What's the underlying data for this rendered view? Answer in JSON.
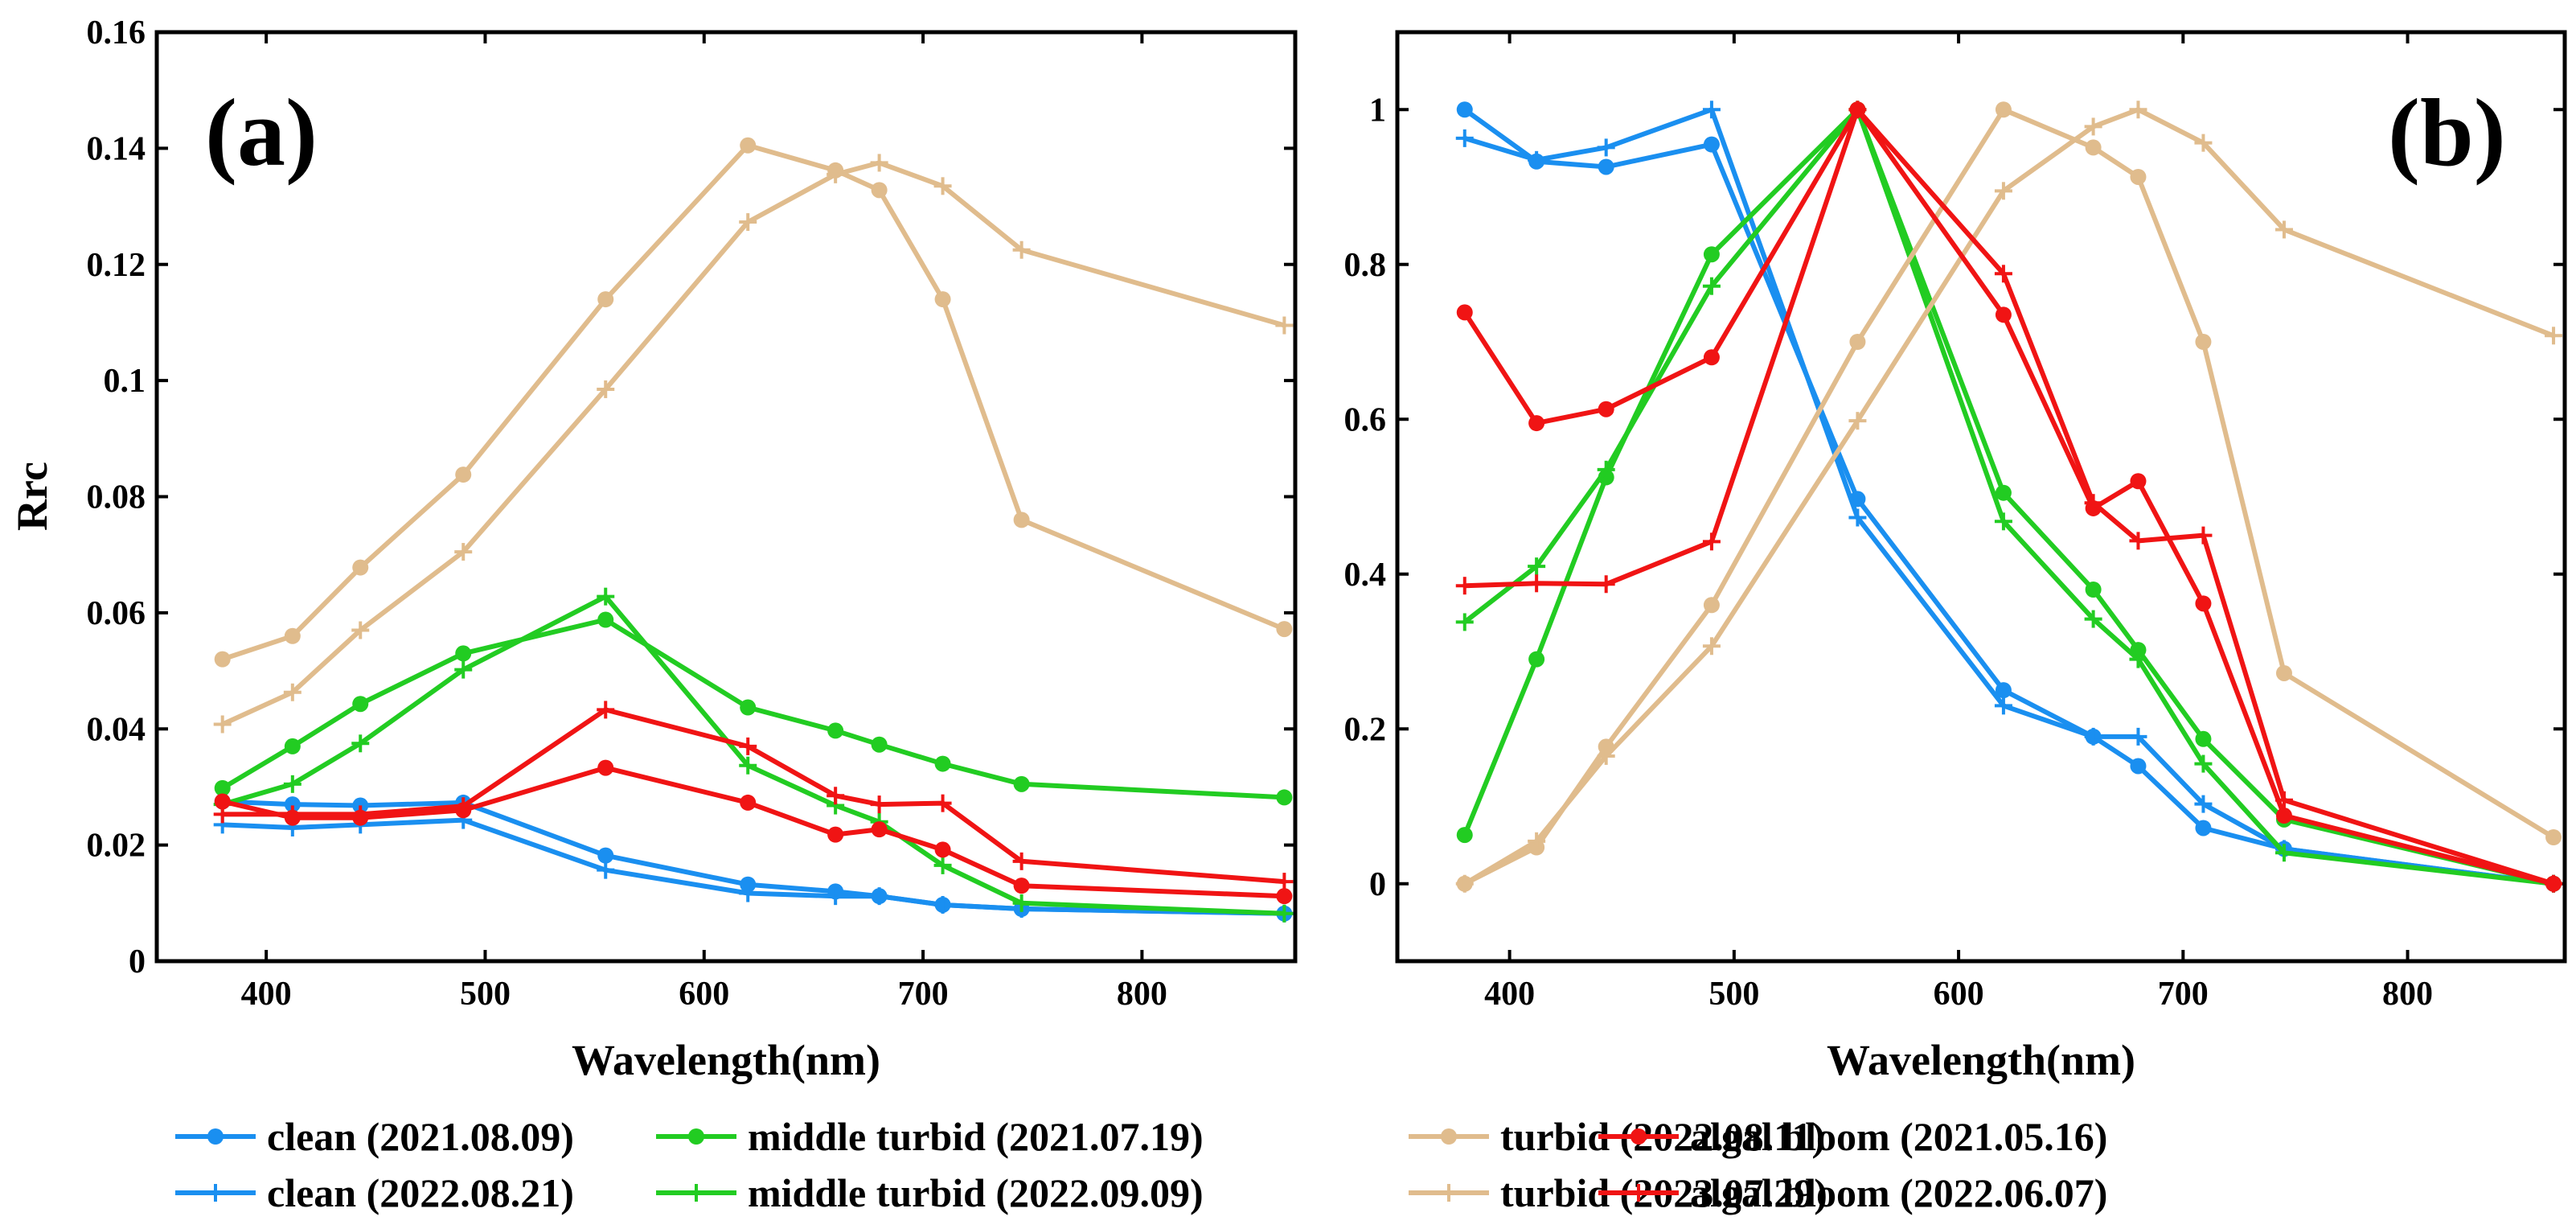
{
  "chart_data": [
    {
      "type": "line",
      "panel_label": "(a)",
      "title": "",
      "xlabel": "Wavelength(nm)",
      "ylabel": "Rrc",
      "xlim": [
        350,
        870
      ],
      "ylim": [
        0,
        0.16
      ],
      "x_ticks": [
        400,
        500,
        600,
        700,
        800
      ],
      "x_tick_labels": [
        "400",
        "500",
        "600",
        "700",
        "800"
      ],
      "y_ticks": [
        0,
        0.02,
        0.04,
        0.06,
        0.08,
        0.1,
        0.12,
        0.14,
        0.16
      ],
      "y_tick_labels": [
        "0",
        "0.02",
        "0.04",
        "0.06",
        "0.08",
        "0.1",
        "0.12",
        "0.14",
        "0.16"
      ],
      "grid": false,
      "x": [
        380,
        412,
        443,
        490,
        555,
        620,
        660,
        680,
        709,
        745,
        865
      ],
      "series": [
        {
          "name": "clean (2021.08.09)",
          "color": "#1a8ff0",
          "marker": "dot",
          "values": [
            0.0275,
            0.027,
            0.0268,
            0.0273,
            0.0182,
            0.0132,
            0.012,
            0.0112,
            0.0097,
            0.009,
            0.0082
          ]
        },
        {
          "name": "clean (2022.08.21)",
          "color": "#1a8ff0",
          "marker": "plus",
          "values": [
            0.0235,
            0.023,
            0.0235,
            0.0243,
            0.0157,
            0.0117,
            0.0112,
            0.0112,
            0.0097,
            0.009,
            0.0082
          ]
        },
        {
          "name": "middle turbid (2021.07.19)",
          "color": "#22cc22",
          "marker": "dot",
          "values": [
            0.0298,
            0.037,
            0.0443,
            0.053,
            0.0588,
            0.0437,
            0.0397,
            0.0373,
            0.034,
            0.0305,
            0.0282
          ]
        },
        {
          "name": "middle turbid (2022.09.09)",
          "color": "#22cc22",
          "marker": "plus",
          "values": [
            0.027,
            0.0305,
            0.0375,
            0.0502,
            0.0628,
            0.0337,
            0.0268,
            0.024,
            0.0165,
            0.01,
            0.0082
          ]
        },
        {
          "name": "turbid (2022.08.11)",
          "color": "#e0bc8d",
          "marker": "dot",
          "values": [
            0.052,
            0.056,
            0.0678,
            0.0838,
            0.114,
            0.1405,
            0.1362,
            0.1328,
            0.114,
            0.076,
            0.0572
          ]
        },
        {
          "name": "turbid (2023.07.29)",
          "color": "#e0bc8d",
          "marker": "plus",
          "values": [
            0.0408,
            0.0463,
            0.057,
            0.0705,
            0.0985,
            0.1273,
            0.1355,
            0.1375,
            0.1335,
            0.1225,
            0.1095
          ]
        },
        {
          "name": "algal bloom (2021.05.16)",
          "color": "#f01414",
          "marker": "dot",
          "values": [
            0.0275,
            0.0247,
            0.0247,
            0.026,
            0.0333,
            0.0273,
            0.0218,
            0.0227,
            0.0192,
            0.013,
            0.0112
          ]
        },
        {
          "name": "algal bloom (2022.06.07)",
          "color": "#f01414",
          "marker": "plus",
          "values": [
            0.0253,
            0.0253,
            0.0253,
            0.0267,
            0.0433,
            0.037,
            0.0285,
            0.027,
            0.0272,
            0.0172,
            0.0137
          ]
        }
      ]
    },
    {
      "type": "line",
      "panel_label": "(b)",
      "title": "",
      "xlabel": "Wavelength(nm)",
      "ylabel": "",
      "xlim": [
        350,
        870
      ],
      "ylim": [
        -0.1,
        1.1
      ],
      "x_ticks": [
        400,
        500,
        600,
        700,
        800
      ],
      "x_tick_labels": [
        "400",
        "500",
        "600",
        "700",
        "800"
      ],
      "y_ticks": [
        0,
        0.2,
        0.4,
        0.6,
        0.8,
        1
      ],
      "y_tick_labels": [
        "0",
        "0.2",
        "0.4",
        "0.6",
        "0.8",
        "1"
      ],
      "grid": false,
      "x": [
        380,
        412,
        443,
        490,
        555,
        620,
        660,
        680,
        709,
        745,
        865
      ],
      "series": [
        {
          "name": "clean (2021.08.09)",
          "color": "#1a8ff0",
          "marker": "dot",
          "values": [
            1.0,
            0.933,
            0.926,
            0.955,
            0.497,
            0.25,
            0.19,
            0.152,
            0.072,
            0.045,
            0.0
          ]
        },
        {
          "name": "clean (2022.08.21)",
          "color": "#1a8ff0",
          "marker": "plus",
          "values": [
            0.963,
            0.935,
            0.951,
            1.0,
            0.473,
            0.23,
            0.19,
            0.19,
            0.103,
            0.045,
            0.0
          ]
        },
        {
          "name": "middle turbid (2021.07.19)",
          "color": "#22cc22",
          "marker": "dot",
          "values": [
            0.063,
            0.29,
            0.525,
            0.813,
            1.0,
            0.505,
            0.38,
            0.302,
            0.187,
            0.083,
            0.0
          ]
        },
        {
          "name": "middle turbid (2022.09.09)",
          "color": "#22cc22",
          "marker": "plus",
          "values": [
            0.338,
            0.41,
            0.535,
            0.772,
            1.0,
            0.468,
            0.342,
            0.29,
            0.155,
            0.04,
            0.0
          ]
        },
        {
          "name": "turbid (2022.08.11)",
          "color": "#e0bc8d",
          "marker": "dot",
          "values": [
            0.0,
            0.047,
            0.177,
            0.36,
            0.7,
            1.0,
            0.951,
            0.913,
            0.7,
            0.272,
            0.06
          ]
        },
        {
          "name": "turbid (2023.07.29)",
          "color": "#e0bc8d",
          "marker": "plus",
          "values": [
            0.0,
            0.055,
            0.165,
            0.307,
            0.598,
            0.895,
            0.978,
            1.0,
            0.957,
            0.845,
            0.708
          ]
        },
        {
          "name": "algal bloom (2021.05.16)",
          "color": "#f01414",
          "marker": "dot",
          "values": [
            0.738,
            0.595,
            0.613,
            0.68,
            1.0,
            0.735,
            0.485,
            0.52,
            0.362,
            0.088,
            0.0
          ]
        },
        {
          "name": "algal bloom (2022.06.07)",
          "color": "#f01414",
          "marker": "plus",
          "values": [
            0.385,
            0.388,
            0.387,
            0.442,
            1.0,
            0.788,
            0.492,
            0.443,
            0.45,
            0.108,
            0.0
          ]
        }
      ]
    }
  ],
  "legend": {
    "placement": "bottom",
    "entries": [
      {
        "label": "clean (2021.08.09)",
        "color": "#1a8ff0",
        "marker": "dot"
      },
      {
        "label": "middle turbid (2021.07.19)",
        "color": "#22cc22",
        "marker": "dot"
      },
      {
        "label": "turbid (2022.08.11)",
        "color": "#e0bc8d",
        "marker": "dot"
      },
      {
        "label": "algal bloom (2021.05.16)",
        "color": "#f01414",
        "marker": "dot"
      },
      {
        "label": "clean (2022.08.21)",
        "color": "#1a8ff0",
        "marker": "plus"
      },
      {
        "label": "middle turbid (2022.09.09)",
        "color": "#22cc22",
        "marker": "plus"
      },
      {
        "label": "turbid (2023.07.29)",
        "color": "#e0bc8d",
        "marker": "plus"
      },
      {
        "label": "algal bloom (2022.06.07)",
        "color": "#f01414",
        "marker": "plus"
      }
    ]
  }
}
